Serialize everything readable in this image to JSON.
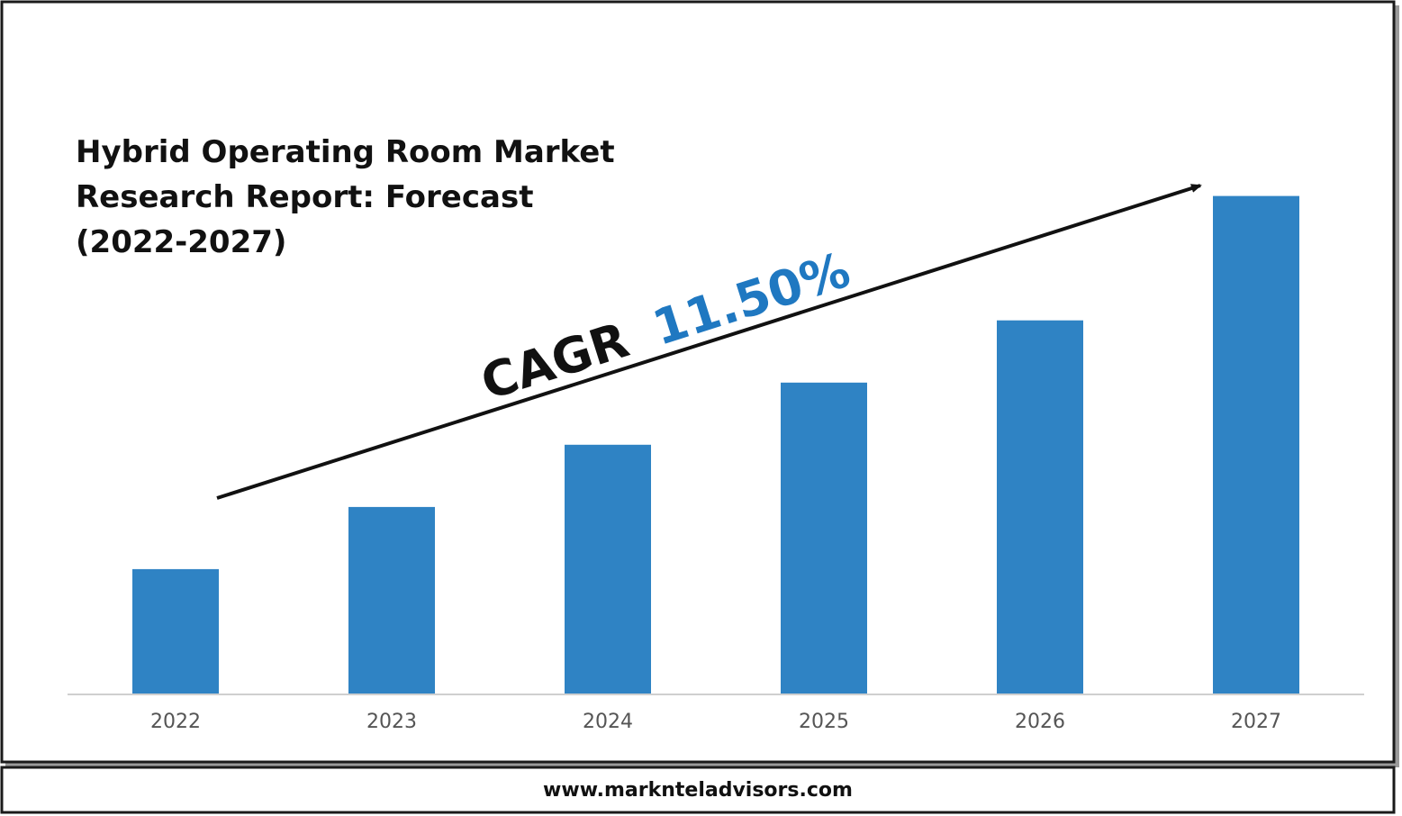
{
  "chart_data": {
    "type": "bar",
    "title_lines": [
      "Hybrid Operating Room Market",
      "Research Report: Forecast",
      "(2022-2027)"
    ],
    "categories": [
      "2022",
      "2023",
      "2024",
      "2025",
      "2026",
      "2027"
    ],
    "values": [
      1.0,
      1.5,
      2.0,
      2.5,
      3.0,
      4.0
    ],
    "ylim": [
      0,
      4.2
    ],
    "bar_color": "#2f83c4",
    "grid": false,
    "legend": "none",
    "annotation": {
      "label": "CAGR",
      "value": "11.50%",
      "label_color": "#111111",
      "value_color": "#1f78c1"
    }
  },
  "footer": {
    "website": "www.markntel­advisors.com"
  }
}
